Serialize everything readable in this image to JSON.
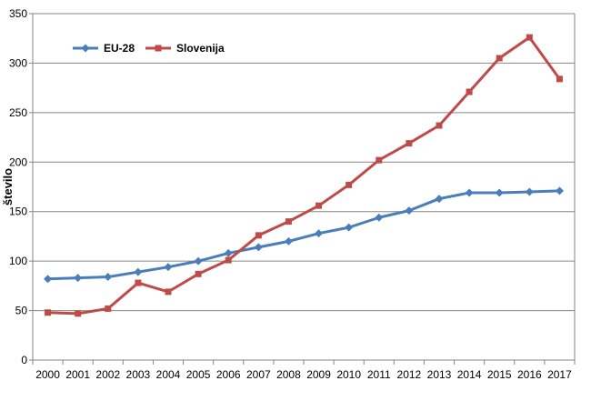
{
  "chart_data": {
    "type": "line",
    "categories": [
      "2000",
      "2001",
      "2002",
      "2003",
      "2004",
      "2005",
      "2006",
      "2007",
      "2008",
      "2009",
      "2010",
      "2011",
      "2012",
      "2013",
      "2014",
      "2015",
      "2016",
      "2017"
    ],
    "series": [
      {
        "name": "EU-28",
        "color": "#4a7ebb",
        "marker": "diamond",
        "values": [
          82,
          83,
          84,
          89,
          94,
          100,
          108,
          114,
          120,
          128,
          134,
          144,
          151,
          163,
          169,
          169,
          170,
          171
        ]
      },
      {
        "name": "Slovenija",
        "color": "#be4b48",
        "marker": "square",
        "values": [
          48,
          47,
          52,
          78,
          69,
          87,
          101,
          126,
          140,
          156,
          177,
          202,
          219,
          237,
          271,
          305,
          326,
          284
        ]
      }
    ],
    "xlabel": "",
    "ylabel": "število",
    "ylim": [
      0,
      350
    ],
    "yticks": [
      0,
      50,
      100,
      150,
      200,
      250,
      300,
      350
    ],
    "grid": true,
    "legend_position": "top-left"
  }
}
